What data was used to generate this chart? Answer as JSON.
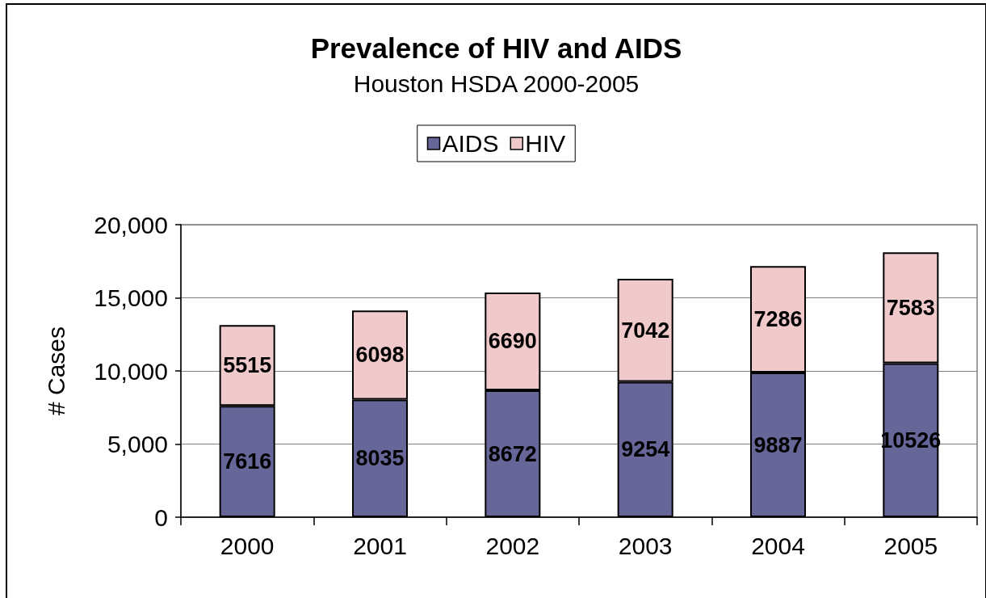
{
  "chart_data": {
    "type": "bar",
    "title": "Prevalence of HIV and AIDS",
    "subtitle": "Houston HSDA 2000-2005",
    "ylabel": "# Cases",
    "categories": [
      "2000",
      "2001",
      "2002",
      "2003",
      "2004",
      "2005"
    ],
    "series": [
      {
        "name": "AIDS",
        "color": "#666699",
        "values": [
          7616,
          8035,
          8672,
          9254,
          9887,
          10526
        ]
      },
      {
        "name": "HIV",
        "color": "#f0caca",
        "values": [
          5515,
          6098,
          6690,
          7042,
          7286,
          7583
        ]
      }
    ],
    "stacked": true,
    "ylim": [
      0,
      20000
    ],
    "yticks": [
      0,
      {
        "value": 5000,
        "label": "5,000"
      },
      {
        "value": 10000,
        "label": "10,000"
      },
      {
        "value": 15000,
        "label": "15,000"
      },
      {
        "value": 20000,
        "label": "20,000"
      }
    ],
    "grid": "y",
    "legend": "top",
    "data_labels": true
  }
}
